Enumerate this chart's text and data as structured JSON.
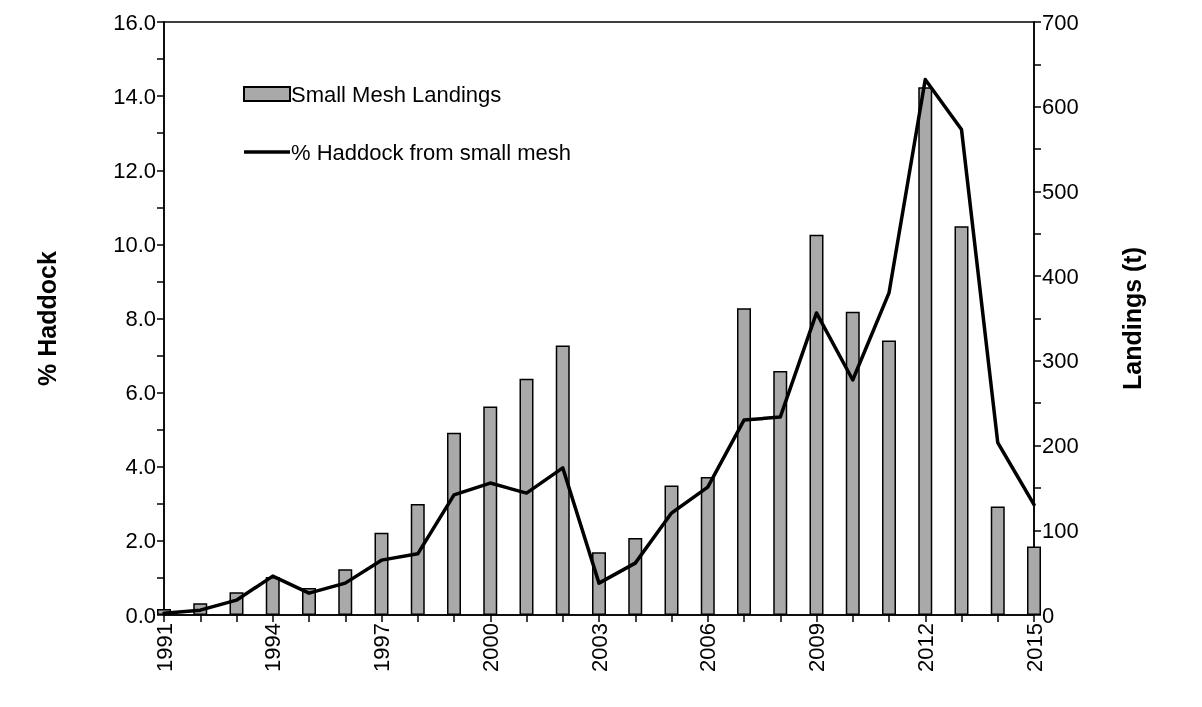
{
  "chart_data": {
    "type": "line",
    "ylabel": "% Haddock",
    "y2label": "Landings (t)",
    "xlim": [
      1991,
      2015
    ],
    "xticks": [
      1991,
      {
        "value": 1992,
        "label": null
      },
      {
        "value": 1993,
        "label": null
      },
      1994,
      {
        "value": 1995,
        "label": null
      },
      {
        "value": 1996,
        "label": null
      },
      1997,
      {
        "value": 1998,
        "label": null
      },
      {
        "value": 1999,
        "label": null
      },
      2000,
      {
        "value": 2001,
        "label": null
      },
      {
        "value": 2002,
        "label": null
      },
      2003,
      {
        "value": 2004,
        "label": null
      },
      {
        "value": 2005,
        "label": null
      },
      2006,
      {
        "value": 2007,
        "label": null
      },
      {
        "value": 2008,
        "label": null
      },
      2009,
      {
        "value": 2010,
        "label": null
      },
      {
        "value": 2011,
        "label": null
      },
      2012,
      {
        "value": 2013,
        "label": null
      },
      {
        "value": 2014,
        "label": null
      },
      2015
    ],
    "ylim": [
      0,
      16
    ],
    "yticks": [
      {
        "value": 0,
        "label": "0.0"
      },
      {
        "value": 1,
        "label": null
      },
      {
        "value": 2,
        "label": "2.0"
      },
      {
        "value": 3,
        "label": null
      },
      {
        "value": 4,
        "label": "4.0"
      },
      {
        "value": 5,
        "label": null
      },
      {
        "value": 6,
        "label": "6.0"
      },
      {
        "value": 7,
        "label": null
      },
      {
        "value": 8,
        "label": "8.0"
      },
      {
        "value": 9,
        "label": null
      },
      {
        "value": 10,
        "label": "10.0"
      },
      {
        "value": 11,
        "label": null
      },
      {
        "value": 12,
        "label": "12.0"
      },
      {
        "value": 13,
        "label": null
      },
      {
        "value": 14,
        "label": "14.0"
      },
      {
        "value": 15,
        "label": null
      },
      {
        "value": 16,
        "label": "16.0"
      }
    ],
    "y2lim": [
      0,
      700
    ],
    "y2ticks": [
      0,
      {
        "value": 50,
        "label": null
      },
      100,
      {
        "value": 150,
        "label": null
      },
      200,
      {
        "value": 250,
        "label": null
      },
      300,
      {
        "value": 350,
        "label": null
      },
      400,
      {
        "value": 450,
        "label": null
      },
      500,
      {
        "value": 550,
        "label": null
      },
      600,
      {
        "value": 650,
        "label": null
      },
      700
    ],
    "x": [
      1991,
      1992,
      1993,
      1994,
      1995,
      1996,
      1997,
      1998,
      1999,
      2000,
      2001,
      2002,
      2003,
      2004,
      2005,
      2006,
      2007,
      2008,
      2009,
      2010,
      2011,
      2012,
      2013,
      2014,
      2015
    ],
    "series": [
      {
        "name": "Small Mesh Landings",
        "type": "bar",
        "axis": "y2",
        "color": "#a9a9a9",
        "values": [
          7,
          14,
          27,
          45,
          32,
          54,
          97,
          131,
          215,
          246,
          279,
          318,
          74,
          91,
          153,
          163,
          362,
          288,
          449,
          358,
          324,
          623,
          459,
          128,
          81
        ]
      },
      {
        "name": "% Haddock from small mesh",
        "color": "#000000",
        "values": [
          0.05,
          0.13,
          0.4,
          1.05,
          0.59,
          0.86,
          1.48,
          1.65,
          3.24,
          3.56,
          3.29,
          3.97,
          0.86,
          1.4,
          2.75,
          3.45,
          5.26,
          5.34,
          8.15,
          6.34,
          8.69,
          14.45,
          13.1,
          4.65,
          2.98
        ]
      }
    ],
    "legend": "top left",
    "grid": false,
    "marker": "none",
    "line_style": "solid"
  }
}
